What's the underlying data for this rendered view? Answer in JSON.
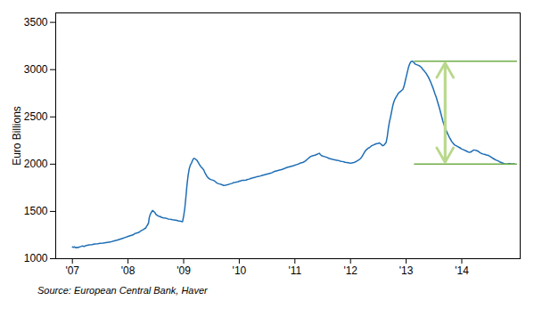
{
  "chart_data": {
    "type": "line",
    "ylabel": "Euro Billions",
    "caption": "Source: European Central Bank, Haver",
    "color": "#1F6EB5",
    "grid": false,
    "xlim": [
      2006.7,
      2015.05
    ],
    "xticks": [
      {
        "value": 2007,
        "label": "'07"
      },
      {
        "value": 2008,
        "label": "'08"
      },
      {
        "value": 2009,
        "label": "'09"
      },
      {
        "value": 2010,
        "label": "'10"
      },
      {
        "value": 2011,
        "label": "'11"
      },
      {
        "value": 2012,
        "label": "'12"
      },
      {
        "value": 2013,
        "label": "'13"
      },
      {
        "value": 2014,
        "label": "'14"
      }
    ],
    "ylim": [
      1000,
      3600
    ],
    "yticks": [
      1000,
      1500,
      2000,
      2500,
      3000,
      3500
    ],
    "hlines": [
      {
        "y": 3090,
        "x1": 2013.15,
        "x2": 2015.0,
        "color": "#70AD47"
      },
      {
        "y": 2000,
        "x1": 2013.15,
        "x2": 2015.0,
        "color": "#70AD47"
      }
    ],
    "arrow": {
      "x": 2013.7,
      "y1": 2020,
      "y2": 3070,
      "color": "#B8D88B"
    },
    "x": [
      2007.0,
      2007.02,
      2007.04,
      2007.06,
      2007.08,
      2007.1,
      2007.12,
      2007.15,
      2007.18,
      2007.21,
      2007.25,
      2007.3,
      2007.35,
      2007.4,
      2007.45,
      2007.5,
      2007.55,
      2007.6,
      2007.65,
      2007.7,
      2007.75,
      2007.8,
      2007.85,
      2007.9,
      2007.95,
      2008.0,
      2008.05,
      2008.1,
      2008.12,
      2008.15,
      2008.18,
      2008.2,
      2008.22,
      2008.25,
      2008.28,
      2008.3,
      2008.32,
      2008.33,
      2008.35,
      2008.37,
      2008.38,
      2008.4,
      2008.42,
      2008.44,
      2008.46,
      2008.48,
      2008.5,
      2008.52,
      2008.55,
      2008.58,
      2008.6,
      2008.63,
      2008.65,
      2008.68,
      2008.7,
      2008.72,
      2008.75,
      2008.78,
      2008.8,
      2008.83,
      2008.85,
      2008.88,
      2008.9,
      2008.93,
      2008.95,
      2008.98,
      2009.0,
      2009.02,
      2009.04,
      2009.06,
      2009.08,
      2009.1,
      2009.12,
      2009.14,
      2009.16,
      2009.18,
      2009.2,
      2009.22,
      2009.24,
      2009.26,
      2009.28,
      2009.3,
      2009.33,
      2009.36,
      2009.39,
      2009.42,
      2009.45,
      2009.48,
      2009.5,
      2009.53,
      2009.56,
      2009.58,
      2009.6,
      2009.62,
      2009.65,
      2009.68,
      2009.7,
      2009.72,
      2009.75,
      2009.78,
      2009.8,
      2009.83,
      2009.86,
      2009.88,
      2009.9,
      2009.93,
      2009.96,
      2009.98,
      2010.0,
      2010.03,
      2010.06,
      2010.09,
      2010.12,
      2010.15,
      2010.18,
      2010.2,
      2010.23,
      2010.26,
      2010.29,
      2010.32,
      2010.35,
      2010.38,
      2010.41,
      2010.44,
      2010.47,
      2010.5,
      2010.53,
      2010.56,
      2010.59,
      2010.62,
      2010.65,
      2010.68,
      2010.71,
      2010.74,
      2010.77,
      2010.8,
      2010.83,
      2010.86,
      2010.89,
      2010.92,
      2010.95,
      2010.98,
      2011.0,
      2011.03,
      2011.06,
      2011.09,
      2011.12,
      2011.15,
      2011.18,
      2011.2,
      2011.22,
      2011.24,
      2011.26,
      2011.28,
      2011.3,
      2011.33,
      2011.36,
      2011.38,
      2011.4,
      2011.42,
      2011.44,
      2011.46,
      2011.48,
      2011.5,
      2011.53,
      2011.56,
      2011.58,
      2011.6,
      2011.62,
      2011.65,
      2011.68,
      2011.7,
      2011.72,
      2011.75,
      2011.78,
      2011.8,
      2011.83,
      2011.86,
      2011.88,
      2011.9,
      2011.93,
      2011.96,
      2011.98,
      2012.0,
      2012.02,
      2012.04,
      2012.06,
      2012.08,
      2012.1,
      2012.12,
      2012.14,
      2012.16,
      2012.18,
      2012.2,
      2012.22,
      2012.24,
      2012.26,
      2012.28,
      2012.3,
      2012.32,
      2012.34,
      2012.36,
      2012.38,
      2012.4,
      2012.42,
      2012.44,
      2012.46,
      2012.48,
      2012.5,
      2012.52,
      2012.54,
      2012.56,
      2012.58,
      2012.6,
      2012.62,
      2012.64,
      2012.66,
      2012.68,
      2012.7,
      2012.72,
      2012.74,
      2012.76,
      2012.78,
      2012.8,
      2012.82,
      2012.84,
      2012.86,
      2012.88,
      2012.9,
      2012.92,
      2012.94,
      2012.96,
      2012.98,
      2013.0,
      2013.02,
      2013.04,
      2013.06,
      2013.08,
      2013.1,
      2013.11,
      2013.12,
      2013.14,
      2013.16,
      2013.18,
      2013.2,
      2013.22,
      2013.24,
      2013.26,
      2013.28,
      2013.3,
      2013.32,
      2013.34,
      2013.36,
      2013.38,
      2013.4,
      2013.42,
      2013.44,
      2013.46,
      2013.48,
      2013.5,
      2013.52,
      2013.54,
      2013.56,
      2013.58,
      2013.6,
      2013.62,
      2013.64,
      2013.66,
      2013.68,
      2013.7,
      2013.72,
      2013.74,
      2013.76,
      2013.78,
      2013.8,
      2013.82,
      2013.84,
      2013.86,
      2013.88,
      2013.9,
      2013.92,
      2013.94,
      2013.96,
      2013.98,
      2014.0,
      2014.02,
      2014.04,
      2014.06,
      2014.08,
      2014.1,
      2014.12,
      2014.14,
      2014.16,
      2014.18,
      2014.2,
      2014.22,
      2014.24,
      2014.26,
      2014.28,
      2014.3,
      2014.32,
      2014.34,
      2014.36,
      2014.38,
      2014.4,
      2014.42,
      2014.44,
      2014.46,
      2014.48,
      2014.5,
      2014.52,
      2014.54,
      2014.56,
      2014.58,
      2014.6,
      2014.62,
      2014.64,
      2014.66,
      2014.68,
      2014.7,
      2014.72,
      2014.74,
      2014.76,
      2014.78,
      2014.8,
      2014.82,
      2014.84,
      2014.86,
      2014.88,
      2014.9,
      2014.92,
      2014.94
    ],
    "values": [
      1125,
      1120,
      1125,
      1115,
      1120,
      1118,
      1122,
      1128,
      1135,
      1130,
      1140,
      1145,
      1148,
      1155,
      1158,
      1162,
      1165,
      1170,
      1175,
      1180,
      1188,
      1195,
      1205,
      1215,
      1225,
      1235,
      1245,
      1255,
      1265,
      1270,
      1275,
      1280,
      1290,
      1300,
      1310,
      1318,
      1325,
      1340,
      1355,
      1380,
      1430,
      1470,
      1490,
      1510,
      1500,
      1490,
      1470,
      1460,
      1450,
      1445,
      1438,
      1432,
      1430,
      1428,
      1425,
      1420,
      1418,
      1415,
      1412,
      1410,
      1408,
      1405,
      1400,
      1398,
      1395,
      1392,
      1450,
      1530,
      1650,
      1780,
      1880,
      1950,
      1990,
      2010,
      2040,
      2060,
      2060,
      2050,
      2040,
      2020,
      2000,
      1980,
      1960,
      1940,
      1900,
      1870,
      1850,
      1840,
      1835,
      1830,
      1820,
      1810,
      1800,
      1795,
      1790,
      1785,
      1780,
      1775,
      1778,
      1782,
      1785,
      1790,
      1795,
      1800,
      1805,
      1808,
      1812,
      1815,
      1820,
      1825,
      1830,
      1828,
      1832,
      1838,
      1842,
      1848,
      1852,
      1858,
      1862,
      1868,
      1870,
      1875,
      1880,
      1885,
      1890,
      1895,
      1900,
      1905,
      1910,
      1920,
      1925,
      1930,
      1935,
      1940,
      1945,
      1952,
      1958,
      1965,
      1970,
      1975,
      1980,
      1985,
      1990,
      1995,
      2000,
      2010,
      2015,
      2020,
      2030,
      2040,
      2050,
      2060,
      2070,
      2080,
      2085,
      2090,
      2095,
      2100,
      2105,
      2110,
      2115,
      2100,
      2090,
      2085,
      2080,
      2075,
      2070,
      2065,
      2060,
      2055,
      2050,
      2048,
      2045,
      2042,
      2038,
      2035,
      2030,
      2028,
      2025,
      2020,
      2018,
      2015,
      2012,
      2010,
      2012,
      2015,
      2018,
      2022,
      2028,
      2035,
      2042,
      2050,
      2060,
      2075,
      2095,
      2115,
      2135,
      2150,
      2160,
      2170,
      2175,
      2185,
      2195,
      2200,
      2205,
      2210,
      2215,
      2218,
      2220,
      2225,
      2215,
      2205,
      2195,
      2200,
      2215,
      2230,
      2290,
      2380,
      2450,
      2500,
      2560,
      2620,
      2660,
      2690,
      2710,
      2730,
      2750,
      2760,
      2770,
      2780,
      2790,
      2820,
      2870,
      2920,
      2970,
      3020,
      3055,
      3080,
      3088,
      3090,
      3085,
      3075,
      3060,
      3055,
      3050,
      3045,
      3040,
      3030,
      3020,
      3000,
      2990,
      2975,
      2960,
      2940,
      2920,
      2895,
      2870,
      2840,
      2810,
      2775,
      2740,
      2710,
      2670,
      2630,
      2590,
      2545,
      2500,
      2455,
      2420,
      2385,
      2355,
      2330,
      2305,
      2280,
      2260,
      2240,
      2225,
      2210,
      2200,
      2195,
      2188,
      2182,
      2175,
      2168,
      2160,
      2155,
      2150,
      2145,
      2140,
      2132,
      2128,
      2125,
      2128,
      2135,
      2145,
      2150,
      2148,
      2145,
      2140,
      2135,
      2125,
      2118,
      2112,
      2108,
      2105,
      2102,
      2098,
      2095,
      2092,
      2085,
      2078,
      2070,
      2062,
      2055,
      2048,
      2042,
      2038,
      2032,
      2025,
      2020,
      2015,
      2010,
      2005,
      2002,
      2000,
      2002,
      2005,
      2005,
      2003,
      2000,
      2002,
      2005
    ]
  }
}
